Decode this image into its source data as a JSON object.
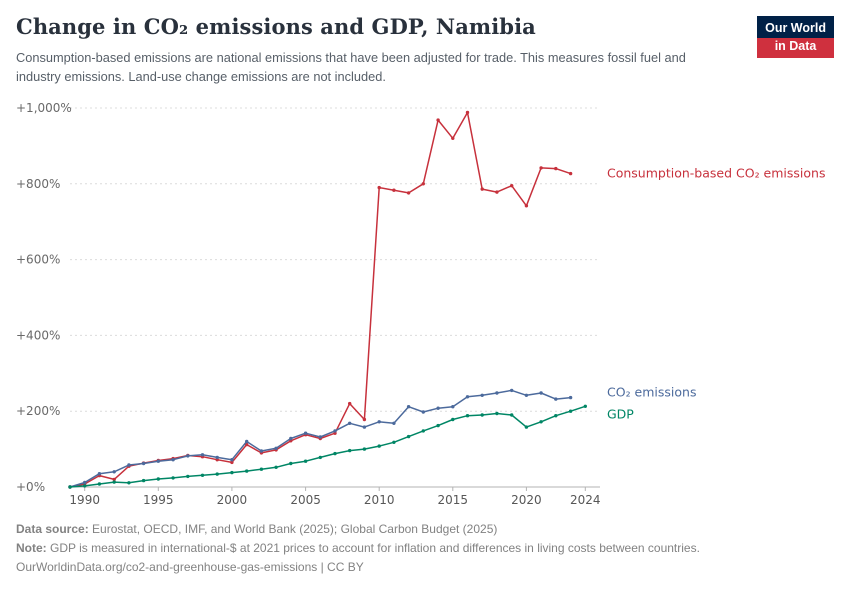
{
  "header": {
    "title": "Change in CO₂ emissions and GDP, Namibia",
    "subtitle": "Consumption-based emissions are national emissions that have been adjusted for trade. This measures fossil fuel and industry emissions. Land-use change emissions are not included.",
    "logo": {
      "line1": "Our World",
      "line2": "in Data"
    }
  },
  "footer": {
    "source_label": "Data source:",
    "source_text": "Eurostat, OECD, IMF, and World Bank (2025); Global Carbon Budget (2025)",
    "note_label": "Note:",
    "note_text": "GDP is measured in international-$ at 2021 prices to account for inflation and differences in living costs between countries.",
    "link": "OurWorldinData.org/co2-and-greenhouse-gas-emissions",
    "license": "| CC BY"
  },
  "colors": {
    "consumption_emissions": "#c7313c",
    "co2_emissions": "#4c6a9c",
    "gdp": "#008665",
    "logo_navy": "#002147",
    "logo_red": "#cf303e",
    "gridline": "#dcdcdc",
    "axis_text": "#696969"
  },
  "chart_data": {
    "type": "line",
    "title": "Change in CO₂ emissions and GDP, Namibia",
    "x_range": [
      1989,
      2025
    ],
    "ylim": [
      0,
      1000
    ],
    "grid": "horizontal-dotted",
    "legend_position": "right-end-labels",
    "y_ticks": [
      {
        "value": 0,
        "label": "+0%"
      },
      {
        "value": 200,
        "label": "+200%"
      },
      {
        "value": 400,
        "label": "+400%"
      },
      {
        "value": 600,
        "label": "+600%"
      },
      {
        "value": 800,
        "label": "+800%"
      },
      {
        "value": 1000,
        "label": "+1,000%"
      }
    ],
    "x_ticks": [
      1990,
      1995,
      2000,
      2005,
      2010,
      2015,
      2020,
      2024
    ],
    "series": [
      {
        "id": "consumption-co2",
        "label": "Consumption-based CO₂ emissions",
        "color": "#c7313c",
        "start_year": 1989,
        "label_dy": 0,
        "values": [
          0,
          8,
          30,
          20,
          55,
          63,
          70,
          75,
          83,
          80,
          72,
          65,
          112,
          90,
          98,
          122,
          138,
          128,
          142,
          220,
          178,
          790,
          783,
          776,
          800,
          968,
          920,
          988,
          786,
          778,
          795,
          742,
          842,
          840,
          827
        ]
      },
      {
        "id": "co2",
        "label": "CO₂ emissions",
        "color": "#4c6a9c",
        "start_year": 1989,
        "label_dy": -5,
        "values": [
          0,
          12,
          35,
          40,
          58,
          62,
          68,
          72,
          82,
          85,
          78,
          72,
          120,
          95,
          102,
          128,
          142,
          132,
          148,
          168,
          158,
          172,
          168,
          212,
          198,
          208,
          212,
          238,
          242,
          248,
          255,
          242,
          248,
          232,
          236
        ]
      },
      {
        "id": "gdp",
        "label": "GDP",
        "color": "#008665",
        "start_year": 1989,
        "label_dy": 8,
        "values": [
          0,
          3,
          8,
          13,
          11,
          17,
          21,
          24,
          28,
          31,
          34,
          38,
          42,
          47,
          52,
          62,
          68,
          78,
          88,
          96,
          100,
          108,
          118,
          133,
          148,
          162,
          178,
          188,
          190,
          194,
          190,
          158,
          172,
          188,
          200,
          213
        ]
      }
    ]
  }
}
